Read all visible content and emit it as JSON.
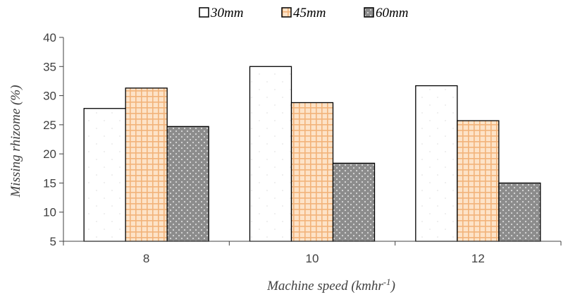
{
  "chart_data": {
    "type": "bar",
    "categories": [
      "8",
      "10",
      "12"
    ],
    "series": [
      {
        "name": "30mm",
        "values": [
          27.8,
          35.0,
          31.7
        ]
      },
      {
        "name": "45mm",
        "values": [
          31.3,
          28.8,
          25.7
        ]
      },
      {
        "name": "60mm",
        "values": [
          24.7,
          18.4,
          15.0
        ]
      }
    ],
    "xlabel": "Machine speed (kmhr",
    "xlabel_superscript": "-1",
    "xlabel_suffix": ")",
    "ylabel": "Missing rhizome (%)",
    "ylim": [
      5,
      40
    ],
    "yticks": [
      5,
      10,
      15,
      20,
      25,
      30,
      35,
      40
    ],
    "grid": false,
    "legend_position": "top-center",
    "colors": {
      "30mm": "#ffffff",
      "45mm": "#fde3c8",
      "60mm": "#8c8c8c",
      "axis": "#404040"
    }
  }
}
